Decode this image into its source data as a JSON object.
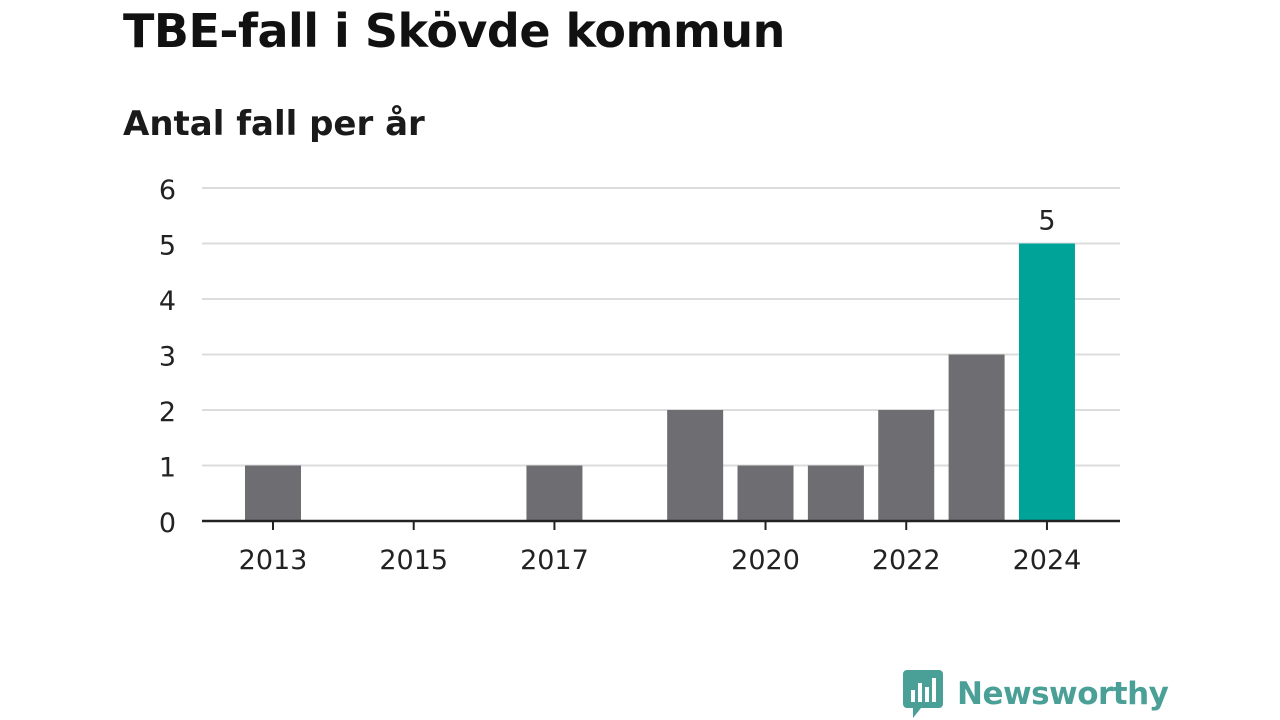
{
  "chart_data": {
    "type": "bar",
    "title": "TBE-fall i Skövde kommun",
    "subtitle": "Antal fall per år",
    "categories": [
      "2013",
      "2014",
      "2015",
      "2016",
      "2017",
      "2018",
      "2019",
      "2020",
      "2021",
      "2022",
      "2023",
      "2024"
    ],
    "x_tick_labels": [
      "2013",
      "2015",
      "2017",
      "2020",
      "2022",
      "2024"
    ],
    "values": [
      1,
      0,
      0,
      0,
      1,
      0,
      2,
      1,
      1,
      2,
      3,
      5
    ],
    "highlight_category": "2024",
    "highlight_label": "5",
    "ylim": [
      0,
      6
    ],
    "y_ticks": [
      0,
      1,
      2,
      3,
      4,
      5,
      6
    ],
    "grid": true,
    "xlabel": "",
    "ylabel": "",
    "colors": {
      "bar": "#6e6d72",
      "highlight": "#00a398",
      "grid": "#dcdcdc",
      "axis": "#222222"
    }
  },
  "brand": {
    "name": "Newsworthy",
    "color": "#4a9f97",
    "icon": "newsworthy-chat-bars-icon"
  }
}
